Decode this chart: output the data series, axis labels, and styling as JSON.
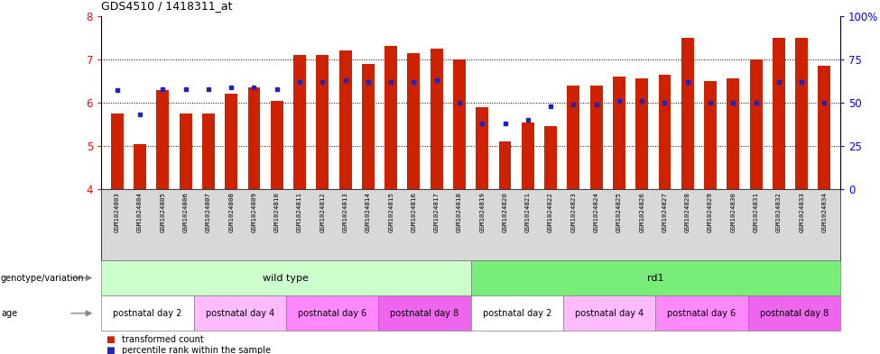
{
  "title": "GDS4510 / 1418311_at",
  "samples": [
    "GSM1024803",
    "GSM1024804",
    "GSM1024805",
    "GSM1024806",
    "GSM1024807",
    "GSM1024808",
    "GSM1024809",
    "GSM1024810",
    "GSM1024811",
    "GSM1024812",
    "GSM1024813",
    "GSM1024814",
    "GSM1024815",
    "GSM1024816",
    "GSM1024817",
    "GSM1024818",
    "GSM1024819",
    "GSM1024820",
    "GSM1024821",
    "GSM1024822",
    "GSM1024823",
    "GSM1024824",
    "GSM1024825",
    "GSM1024826",
    "GSM1024827",
    "GSM1024828",
    "GSM1024829",
    "GSM1024830",
    "GSM1024831",
    "GSM1024832",
    "GSM1024833",
    "GSM1024834"
  ],
  "transformed_count": [
    5.75,
    5.05,
    6.3,
    5.75,
    5.75,
    6.2,
    6.35,
    6.05,
    7.1,
    7.1,
    7.2,
    6.9,
    7.3,
    7.15,
    7.25,
    7.0,
    5.9,
    5.1,
    5.55,
    5.45,
    6.4,
    6.4,
    6.6,
    6.55,
    6.65,
    7.5,
    6.5,
    6.55,
    7.0,
    7.5,
    7.5,
    6.85
  ],
  "percentile_rank": [
    57,
    43,
    58,
    58,
    58,
    59,
    59,
    58,
    62,
    62,
    63,
    62,
    62,
    62,
    63,
    50,
    38,
    38,
    40,
    48,
    49,
    49,
    51,
    51,
    50,
    62,
    50,
    50,
    50,
    62,
    62,
    50
  ],
  "ymin": 4,
  "ymax": 8,
  "yticks_left": [
    4,
    5,
    6,
    7,
    8
  ],
  "right_ytick_vals": [
    0,
    25,
    50,
    75,
    100
  ],
  "right_ytick_labels": [
    "0",
    "25",
    "50",
    "75",
    "100%"
  ],
  "bar_color": "#cc2200",
  "dot_color": "#2222bb",
  "bar_bottom": 4.0,
  "bar_width": 0.55,
  "dotted_gridlines": [
    5,
    6,
    7
  ],
  "genotype_groups": [
    {
      "label": "wild type",
      "start": 0,
      "end": 16,
      "color": "#ccffcc"
    },
    {
      "label": "rd1",
      "start": 16,
      "end": 32,
      "color": "#77ee77"
    }
  ],
  "age_groups": [
    {
      "label": "postnatal day 2",
      "start": 0,
      "end": 4,
      "color": "#ffffff"
    },
    {
      "label": "postnatal day 4",
      "start": 4,
      "end": 8,
      "color": "#ffbbff"
    },
    {
      "label": "postnatal day 6",
      "start": 8,
      "end": 12,
      "color": "#ff88ff"
    },
    {
      "label": "postnatal day 8",
      "start": 12,
      "end": 16,
      "color": "#ee66ee"
    },
    {
      "label": "postnatal day 2",
      "start": 16,
      "end": 20,
      "color": "#ffffff"
    },
    {
      "label": "postnatal day 4",
      "start": 20,
      "end": 24,
      "color": "#ffbbff"
    },
    {
      "label": "postnatal day 6",
      "start": 24,
      "end": 28,
      "color": "#ff88ff"
    },
    {
      "label": "postnatal day 8",
      "start": 28,
      "end": 32,
      "color": "#ee66ee"
    }
  ],
  "xlabels_bg": "#d8d8d8",
  "legend_label_red": "transformed count",
  "legend_label_blue": "percentile rank within the sample",
  "left_label_geno": "genotype/variation",
  "left_label_age": "age"
}
